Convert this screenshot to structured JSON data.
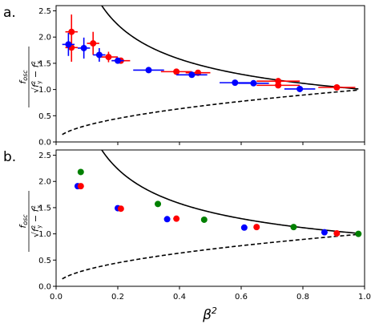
{
  "chart_data": [
    {
      "type": "scatter",
      "panel_label": "a.",
      "xlim": [
        0.0,
        1.0
      ],
      "ylim": [
        0.0,
        2.6
      ],
      "yticks": [
        "0.0",
        "0.5",
        "1.0",
        "1.5",
        "2.0",
        "2.5"
      ],
      "ylabel": "fosc / √(fy² − fx²)",
      "grid": false,
      "curves": [
        {
          "style": "solid",
          "color": "#000000",
          "formula": "1/sqrt(x)"
        },
        {
          "style": "dashed",
          "color": "#000000",
          "formula": "sqrt(x)"
        }
      ],
      "series": [
        {
          "color": "#ff0000",
          "points": [
            {
              "x": 0.05,
              "y": 2.1,
              "xerr": 0.02,
              "yerr": 0.33
            },
            {
              "x": 0.05,
              "y": 1.8,
              "xerr": 0.02,
              "yerr": 0.27
            },
            {
              "x": 0.12,
              "y": 1.88,
              "xerr": 0.02,
              "yerr": 0.22
            },
            {
              "x": 0.17,
              "y": 1.62,
              "xerr": 0.03,
              "yerr": 0.1
            },
            {
              "x": 0.21,
              "y": 1.55,
              "xerr": 0.03,
              "yerr": 0.04
            },
            {
              "x": 0.39,
              "y": 1.34,
              "xerr": 0.05,
              "yerr": 0.03
            },
            {
              "x": 0.46,
              "y": 1.32,
              "xerr": 0.04,
              "yerr": 0.03
            },
            {
              "x": 0.72,
              "y": 1.16,
              "xerr": 0.07,
              "yerr": 0.03
            },
            {
              "x": 0.72,
              "y": 1.08,
              "xerr": 0.07,
              "yerr": 0.03
            },
            {
              "x": 0.91,
              "y": 1.04,
              "xerr": 0.06,
              "yerr": 0.03
            }
          ]
        },
        {
          "color": "#0000ff",
          "points": [
            {
              "x": 0.04,
              "y": 1.86,
              "xerr": 0.02,
              "yerr": 0.22
            },
            {
              "x": 0.09,
              "y": 1.79,
              "xerr": 0.02,
              "yerr": 0.2
            },
            {
              "x": 0.14,
              "y": 1.66,
              "xerr": 0.02,
              "yerr": 0.13
            },
            {
              "x": 0.2,
              "y": 1.55,
              "xerr": 0.02,
              "yerr": 0.05
            },
            {
              "x": 0.3,
              "y": 1.37,
              "xerr": 0.05,
              "yerr": 0.02
            },
            {
              "x": 0.44,
              "y": 1.28,
              "xerr": 0.05,
              "yerr": 0.02
            },
            {
              "x": 0.58,
              "y": 1.13,
              "xerr": 0.05,
              "yerr": 0.02
            },
            {
              "x": 0.64,
              "y": 1.12,
              "xerr": 0.05,
              "yerr": 0.02
            },
            {
              "x": 0.79,
              "y": 1.01,
              "xerr": 0.05,
              "yerr": 0.02
            }
          ]
        }
      ]
    },
    {
      "type": "scatter",
      "panel_label": "b.",
      "xlim": [
        0.0,
        1.0
      ],
      "ylim": [
        0.0,
        2.6
      ],
      "xticks": [
        "0.0",
        "0.2",
        "0.4",
        "0.6",
        "0.8",
        "1.0"
      ],
      "yticks": [
        "0.0",
        "0.5",
        "1.0",
        "1.5",
        "2.0",
        "2.5"
      ],
      "xlabel": "β²",
      "ylabel": "fosc / √(fy² − fx²)",
      "grid": false,
      "curves": [
        {
          "style": "solid",
          "color": "#000000",
          "formula": "1/sqrt(x)"
        },
        {
          "style": "dashed",
          "color": "#000000",
          "formula": "sqrt(x)"
        }
      ],
      "series": [
        {
          "color": "#0000ff",
          "points": [
            {
              "x": 0.07,
              "y": 1.91
            },
            {
              "x": 0.2,
              "y": 1.49
            },
            {
              "x": 0.36,
              "y": 1.28
            },
            {
              "x": 0.61,
              "y": 1.12
            },
            {
              "x": 0.87,
              "y": 1.03
            }
          ]
        },
        {
          "color": "#ff0000",
          "points": [
            {
              "x": 0.08,
              "y": 1.91
            },
            {
              "x": 0.21,
              "y": 1.48
            },
            {
              "x": 0.39,
              "y": 1.29
            },
            {
              "x": 0.65,
              "y": 1.13
            },
            {
              "x": 0.91,
              "y": 1.01
            }
          ]
        },
        {
          "color": "#008000",
          "points": [
            {
              "x": 0.08,
              "y": 2.18
            },
            {
              "x": 0.33,
              "y": 1.57
            },
            {
              "x": 0.48,
              "y": 1.27
            },
            {
              "x": 0.77,
              "y": 1.13
            },
            {
              "x": 0.98,
              "y": 1.0
            }
          ]
        }
      ]
    }
  ]
}
